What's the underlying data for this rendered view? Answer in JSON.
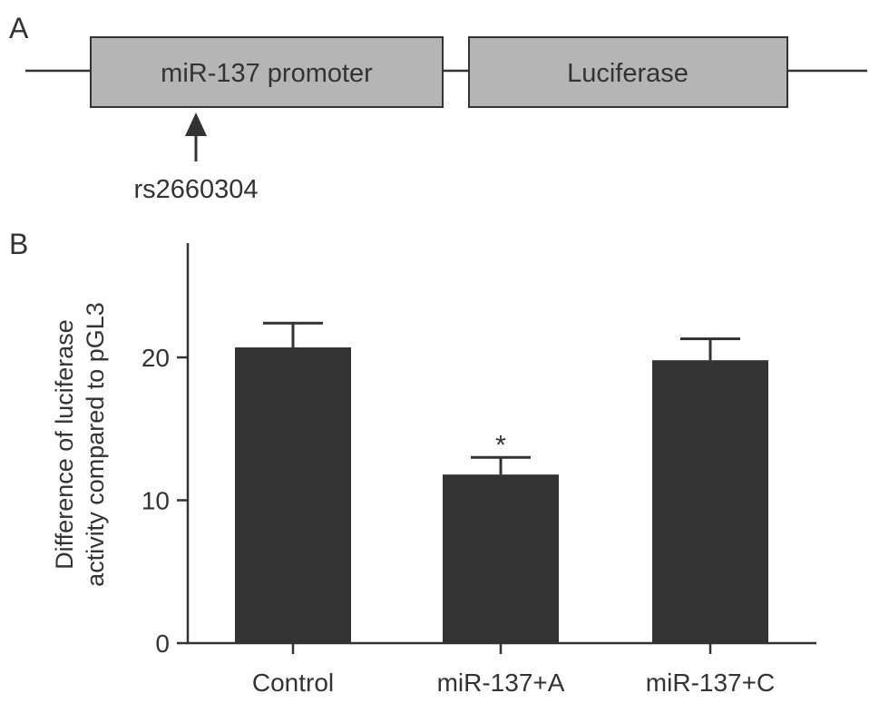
{
  "panel_a": {
    "label": "A",
    "promoter_label": "miR-137 promoter",
    "reporter_label": "Luciferase",
    "snp_label": "rs2660304",
    "box_fill": "#b5b5b5"
  },
  "panel_b": {
    "label": "B",
    "bar_color": "#333333"
  },
  "chart_data": {
    "type": "bar",
    "title": "",
    "xlabel": "",
    "ylabel": "Difference of luciferase activity compared to pGL3",
    "ylabel_lines": [
      "Difference of luciferase",
      "activity compared to pGL3"
    ],
    "categories": [
      "Control",
      "miR-137+A",
      "miR-137+C"
    ],
    "values": [
      20.7,
      11.8,
      19.8
    ],
    "errors": [
      1.7,
      1.2,
      1.5
    ],
    "annotations": [
      "",
      "*",
      ""
    ],
    "ylim": [
      0,
      28
    ],
    "yticks": [
      0,
      10,
      20
    ],
    "grid": false,
    "legend": "none"
  }
}
